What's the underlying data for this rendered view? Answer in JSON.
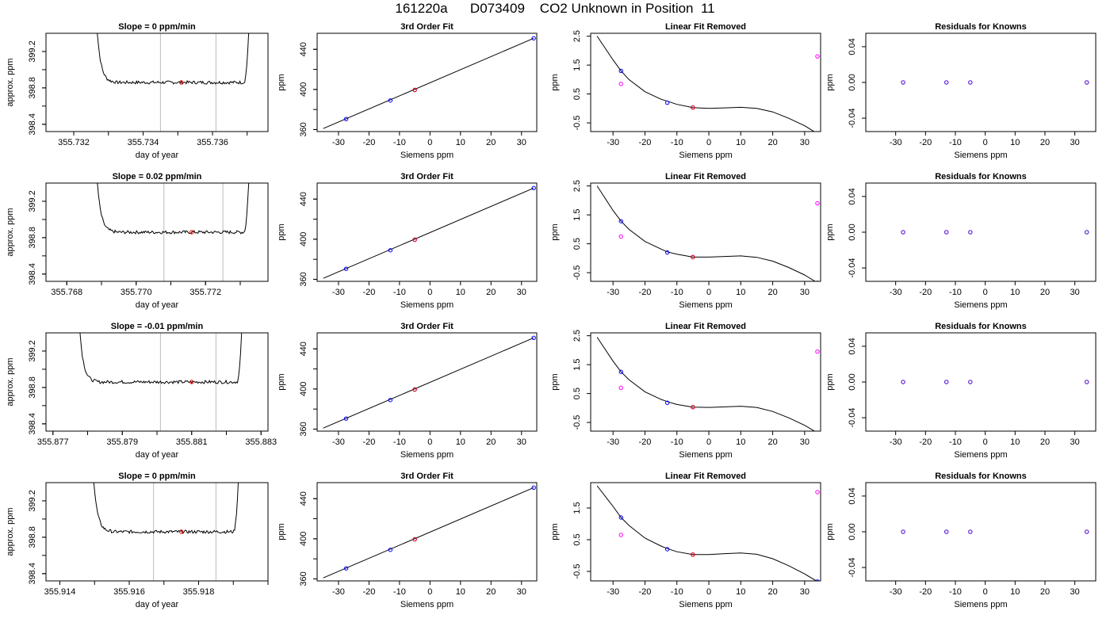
{
  "figure": {
    "title": "161220a      D073409    CO2 Unknown in Position  11"
  },
  "chart_data": [
    {
      "type": "line",
      "title": "Slope =  0  ppm/min",
      "xlabel": "day of year",
      "ylabel": "approx. ppm",
      "xlim": [
        355.7312,
        355.7376
      ],
      "ylim": [
        398.32,
        399.4
      ],
      "xticks": [
        "355.732",
        "355.734",
        "355.736"
      ],
      "xtick_values": [
        355.732,
        355.734,
        355.736
      ],
      "yticks": [
        "398.4",
        "398.8",
        "399.2"
      ],
      "ytick_values": [
        398.4,
        398.8,
        399.2
      ],
      "trace": {
        "x_start": 355.7326,
        "x_end": 355.7371,
        "rise_start": 399.4,
        "level": 398.86,
        "rise_end": 399.4,
        "plateau_start": 355.7328,
        "plateau_end": 355.7369
      },
      "vlines": [
        355.7345,
        355.7361
      ],
      "mean_point": {
        "x": 355.7351,
        "y": 398.86
      }
    },
    {
      "type": "line",
      "title": "3rd Order Fit",
      "xlabel": "Siemens ppm",
      "ylabel": "ppm",
      "xlim": [
        -37,
        35
      ],
      "ylim": [
        358,
        456
      ],
      "xticks": [
        "-30",
        "-20",
        "-10",
        "0",
        "10",
        "20",
        "30"
      ],
      "xtick_values": [
        -30,
        -20,
        -10,
        0,
        10,
        20,
        30
      ],
      "yticks": [
        "360",
        "400",
        "440"
      ],
      "ytick_values": [
        360,
        400,
        440
      ],
      "fit_line": {
        "x": [
          -35,
          34
        ],
        "y": [
          361,
          451
        ]
      },
      "known_points": {
        "x": [
          -27.5,
          -13,
          -5,
          34
        ],
        "y": [
          370.5,
          389,
          399.5,
          451
        ]
      },
      "unknown_point": {
        "x": -5,
        "y": 399.5
      }
    },
    {
      "type": "line",
      "title": "Linear Fit Removed",
      "xlabel": "Siemens ppm",
      "ylabel": "ppm",
      "xlim": [
        -37,
        35
      ],
      "ylim": [
        -0.8,
        2.6
      ],
      "xticks": [
        "-30",
        "-20",
        "-10",
        "0",
        "10",
        "20",
        "30"
      ],
      "xtick_values": [
        -30,
        -20,
        -10,
        0,
        10,
        20,
        30
      ],
      "yticks": [
        "-0.5",
        "0.5",
        "1.5",
        "2.5"
      ],
      "ytick_values": [
        -0.5,
        0.5,
        1.5,
        2.5
      ],
      "curve": {
        "x": [
          -35,
          -30,
          -27.5,
          -25,
          -20,
          -15,
          -13,
          -10,
          -5,
          0,
          5,
          10,
          15,
          20,
          25,
          30,
          34
        ],
        "y": [
          2.5,
          1.68,
          1.3,
          1.0,
          0.58,
          0.32,
          0.25,
          0.14,
          0.03,
          0.0,
          0.02,
          0.04,
          0.0,
          -0.12,
          -0.34,
          -0.6,
          -0.87
        ]
      },
      "known_points": {
        "x": [
          -27.5,
          -13,
          -5,
          34
        ],
        "y": [
          1.3,
          0.2,
          0.03,
          -0.87
        ]
      },
      "unknown_point": {
        "x": -5,
        "y": 0.03
      },
      "magenta_points": {
        "x": [
          -27.5,
          34
        ],
        "y": [
          0.85,
          1.8
        ]
      }
    },
    {
      "type": "scatter",
      "title": "Residuals for Knowns",
      "xlabel": "Siemens ppm",
      "ylabel": "ppm",
      "xlim": [
        -40,
        37
      ],
      "ylim": [
        -0.055,
        0.055
      ],
      "xticks": [
        "-30",
        "-20",
        "-10",
        "0",
        "10",
        "20",
        "30"
      ],
      "xtick_values": [
        -30,
        -20,
        -10,
        0,
        10,
        20,
        30
      ],
      "yticks": [
        "-0.04",
        "0.00",
        "0.04"
      ],
      "ytick_values": [
        -0.04,
        0.0,
        0.04
      ],
      "points": {
        "x": [
          -27.5,
          -13,
          -5,
          34
        ],
        "y": [
          0,
          0,
          0,
          0
        ]
      }
    },
    {
      "type": "line",
      "title": "Slope =  0.02  ppm/min",
      "xlabel": "day of year",
      "ylabel": "approx. ppm",
      "xlim": [
        355.7674,
        355.7738
      ],
      "ylim": [
        398.32,
        399.4
      ],
      "xticks": [
        "355.768",
        "355.770",
        "355.772"
      ],
      "xtick_values": [
        355.768,
        355.77,
        355.772
      ],
      "yticks": [
        "398.4",
        "398.8",
        "399.2"
      ],
      "ytick_values": [
        398.4,
        398.8,
        399.2
      ],
      "trace": {
        "x_start": 355.7688,
        "x_end": 355.7733,
        "rise_start": 399.4,
        "level": 398.86,
        "rise_end": 399.4,
        "plateau_start": 355.769,
        "plateau_end": 355.7731
      },
      "vlines": [
        355.7708,
        355.7725
      ],
      "mean_point": {
        "x": 355.7716,
        "y": 398.86
      }
    },
    {
      "type": "line",
      "title": "3rd Order Fit",
      "xlabel": "Siemens ppm",
      "ylabel": "ppm",
      "xlim": [
        -37,
        35
      ],
      "ylim": [
        358,
        456
      ],
      "xticks": [
        "-30",
        "-20",
        "-10",
        "0",
        "10",
        "20",
        "30"
      ],
      "xtick_values": [
        -30,
        -20,
        -10,
        0,
        10,
        20,
        30
      ],
      "yticks": [
        "360",
        "400",
        "440"
      ],
      "ytick_values": [
        360,
        400,
        440
      ],
      "fit_line": {
        "x": [
          -35,
          34
        ],
        "y": [
          361,
          451
        ]
      },
      "known_points": {
        "x": [
          -27.5,
          -13,
          -5,
          34
        ],
        "y": [
          370.5,
          389,
          399.5,
          451
        ]
      },
      "unknown_point": {
        "x": -5,
        "y": 399.5
      }
    },
    {
      "type": "line",
      "title": "Linear Fit Removed",
      "xlabel": "Siemens ppm",
      "ylabel": "ppm",
      "xlim": [
        -37,
        35
      ],
      "ylim": [
        -0.8,
        2.6
      ],
      "xticks": [
        "-30",
        "-20",
        "-10",
        "0",
        "10",
        "20",
        "30"
      ],
      "xtick_values": [
        -30,
        -20,
        -10,
        0,
        10,
        20,
        30
      ],
      "yticks": [
        "-0.5",
        "0.5",
        "1.5",
        "2.5"
      ],
      "ytick_values": [
        -0.5,
        0.5,
        1.5,
        2.5
      ],
      "curve": {
        "x": [
          -35,
          -30,
          -27.5,
          -25,
          -20,
          -15,
          -13,
          -10,
          -5,
          0,
          5,
          10,
          15,
          20,
          25,
          30,
          34
        ],
        "y": [
          2.5,
          1.65,
          1.28,
          1.0,
          0.58,
          0.32,
          0.22,
          0.14,
          0.04,
          0.04,
          0.06,
          0.08,
          0.03,
          -0.1,
          -0.32,
          -0.58,
          -0.85
        ]
      },
      "known_points": {
        "x": [
          -27.5,
          -13,
          -5,
          34
        ],
        "y": [
          1.28,
          0.2,
          0.04,
          -0.85
        ]
      },
      "unknown_point": {
        "x": -5,
        "y": 0.04
      },
      "magenta_points": {
        "x": [
          -27.5,
          34
        ],
        "y": [
          0.75,
          1.9
        ]
      }
    },
    {
      "type": "scatter",
      "title": "Residuals for Knowns",
      "xlabel": "Siemens ppm",
      "ylabel": "ppm",
      "xlim": [
        -40,
        37
      ],
      "ylim": [
        -0.055,
        0.055
      ],
      "xticks": [
        "-30",
        "-20",
        "-10",
        "0",
        "10",
        "20",
        "30"
      ],
      "xtick_values": [
        -30,
        -20,
        -10,
        0,
        10,
        20,
        30
      ],
      "yticks": [
        "-0.04",
        "0.00",
        "0.04"
      ],
      "ytick_values": [
        -0.04,
        0.0,
        0.04
      ],
      "points": {
        "x": [
          -27.5,
          -13,
          -5,
          34
        ],
        "y": [
          0,
          0,
          0,
          0
        ]
      }
    },
    {
      "type": "line",
      "title": "Slope =  -0.01  ppm/min",
      "xlabel": "day of year",
      "ylabel": "approx. ppm",
      "xlim": [
        355.8768,
        355.8832
      ],
      "ylim": [
        398.32,
        399.4
      ],
      "xticks": [
        "355.877",
        "355.879",
        "355.881",
        "355.883"
      ],
      "xtick_values": [
        355.877,
        355.879,
        355.881,
        355.883
      ],
      "yticks": [
        "398.4",
        "398.8",
        "399.2"
      ],
      "ytick_values": [
        398.4,
        398.8,
        399.2
      ],
      "trace": {
        "x_start": 355.8777,
        "x_end": 355.8825,
        "rise_start": 399.4,
        "level": 398.86,
        "rise_end": 399.4,
        "plateau_start": 355.8779,
        "plateau_end": 355.8823
      },
      "vlines": [
        355.8801,
        355.8817
      ],
      "mean_point": {
        "x": 355.881,
        "y": 398.86
      }
    },
    {
      "type": "line",
      "title": "3rd Order Fit",
      "xlabel": "Siemens ppm",
      "ylabel": "ppm",
      "xlim": [
        -37,
        35
      ],
      "ylim": [
        358,
        456
      ],
      "xticks": [
        "-30",
        "-20",
        "-10",
        "0",
        "10",
        "20",
        "30"
      ],
      "xtick_values": [
        -30,
        -20,
        -10,
        0,
        10,
        20,
        30
      ],
      "yticks": [
        "360",
        "400",
        "440"
      ],
      "ytick_values": [
        360,
        400,
        440
      ],
      "fit_line": {
        "x": [
          -35,
          34
        ],
        "y": [
          361,
          451
        ]
      },
      "known_points": {
        "x": [
          -27.5,
          -13,
          -5,
          34
        ],
        "y": [
          370.5,
          389,
          399.5,
          451
        ]
      },
      "unknown_point": {
        "x": -5,
        "y": 399.5
      }
    },
    {
      "type": "line",
      "title": "Linear Fit Removed",
      "xlabel": "Siemens ppm",
      "ylabel": "ppm",
      "xlim": [
        -37,
        35
      ],
      "ylim": [
        -0.8,
        2.6
      ],
      "xticks": [
        "-30",
        "-20",
        "-10",
        "0",
        "10",
        "20",
        "30"
      ],
      "xtick_values": [
        -30,
        -20,
        -10,
        0,
        10,
        20,
        30
      ],
      "yticks": [
        "-0.5",
        "0.5",
        "1.5",
        "2.5"
      ],
      "ytick_values": [
        -0.5,
        0.5,
        1.5,
        2.5
      ],
      "curve": {
        "x": [
          -35,
          -30,
          -27.5,
          -25,
          -20,
          -15,
          -13,
          -10,
          -5,
          0,
          5,
          10,
          15,
          20,
          25,
          30,
          34
        ],
        "y": [
          2.45,
          1.62,
          1.25,
          0.98,
          0.56,
          0.3,
          0.22,
          0.12,
          0.03,
          0.02,
          0.04,
          0.06,
          0.02,
          -0.12,
          -0.34,
          -0.6,
          -0.86
        ]
      },
      "known_points": {
        "x": [
          -27.5,
          -13,
          -5,
          34
        ],
        "y": [
          1.25,
          0.18,
          0.03,
          -0.86
        ]
      },
      "unknown_point": {
        "x": -5,
        "y": 0.03
      },
      "magenta_points": {
        "x": [
          -27.5,
          34
        ],
        "y": [
          0.7,
          1.95
        ]
      }
    },
    {
      "type": "scatter",
      "title": "Residuals for Knowns",
      "xlabel": "Siemens ppm",
      "ylabel": "ppm",
      "xlim": [
        -40,
        37
      ],
      "ylim": [
        -0.055,
        0.055
      ],
      "xticks": [
        "-30",
        "-20",
        "-10",
        "0",
        "10",
        "20",
        "30"
      ],
      "xtick_values": [
        -30,
        -20,
        -10,
        0,
        10,
        20,
        30
      ],
      "yticks": [
        "-0.04",
        "0.00",
        "0.04"
      ],
      "ytick_values": [
        -0.04,
        0.0,
        0.04
      ],
      "points": {
        "x": [
          -27.5,
          -13,
          -5,
          34
        ],
        "y": [
          0,
          0,
          0,
          0
        ]
      }
    },
    {
      "type": "line",
      "title": "Slope =  0  ppm/min",
      "xlabel": "day of year",
      "ylabel": "approx. ppm",
      "xlim": [
        355.9136,
        355.92
      ],
      "ylim": [
        398.32,
        399.4
      ],
      "xticks": [
        "355.914",
        "355.916",
        "355.918"
      ],
      "xtick_values": [
        355.914,
        355.916,
        355.918
      ],
      "yticks": [
        "398.4",
        "398.8",
        "399.2"
      ],
      "ytick_values": [
        398.4,
        398.8,
        399.2
      ],
      "trace": {
        "x_start": 355.9149,
        "x_end": 355.9192,
        "rise_start": 399.4,
        "level": 398.86,
        "rise_end": 399.4,
        "plateau_start": 355.9151,
        "plateau_end": 355.919
      },
      "vlines": [
        355.9167,
        355.9185
      ],
      "mean_point": {
        "x": 355.9175,
        "y": 398.86
      }
    },
    {
      "type": "line",
      "title": "3rd Order Fit",
      "xlabel": "Siemens ppm",
      "ylabel": "ppm",
      "xlim": [
        -37,
        35
      ],
      "ylim": [
        358,
        456
      ],
      "xticks": [
        "-30",
        "-20",
        "-10",
        "0",
        "10",
        "20",
        "30"
      ],
      "xtick_values": [
        -30,
        -20,
        -10,
        0,
        10,
        20,
        30
      ],
      "yticks": [
        "360",
        "400",
        "440"
      ],
      "ytick_values": [
        360,
        400,
        440
      ],
      "fit_line": {
        "x": [
          -35,
          34
        ],
        "y": [
          361,
          451
        ]
      },
      "known_points": {
        "x": [
          -27.5,
          -13,
          -5,
          34
        ],
        "y": [
          370.5,
          389,
          399.5,
          451
        ]
      },
      "unknown_point": {
        "x": -5,
        "y": 399.5
      }
    },
    {
      "type": "line",
      "title": "Linear Fit Removed",
      "xlabel": "Siemens ppm",
      "ylabel": "ppm",
      "xlim": [
        -37,
        35
      ],
      "ylim": [
        -0.8,
        2.3
      ],
      "xticks": [
        "-30",
        "-20",
        "-10",
        "0",
        "10",
        "20",
        "30"
      ],
      "xtick_values": [
        -30,
        -20,
        -10,
        0,
        10,
        20,
        30
      ],
      "yticks": [
        "-0.5",
        "0.5",
        "1.5"
      ],
      "ytick_values": [
        -0.5,
        0.5,
        1.5
      ],
      "curve": {
        "x": [
          -35,
          -30,
          -27.5,
          -25,
          -20,
          -15,
          -13,
          -10,
          -5,
          0,
          5,
          10,
          15,
          20,
          25,
          30,
          34
        ],
        "y": [
          2.2,
          1.55,
          1.2,
          0.95,
          0.55,
          0.3,
          0.22,
          0.12,
          0.03,
          0.03,
          0.06,
          0.08,
          0.04,
          -0.1,
          -0.32,
          -0.58,
          -0.82
        ]
      },
      "known_points": {
        "x": [
          -27.5,
          -13,
          -5,
          34
        ],
        "y": [
          1.2,
          0.2,
          0.03,
          -0.82
        ]
      },
      "unknown_point": {
        "x": -5,
        "y": 0.03
      },
      "magenta_points": {
        "x": [
          -27.5,
          34
        ],
        "y": [
          0.65,
          2.0
        ]
      }
    },
    {
      "type": "scatter",
      "title": "Residuals for Knowns",
      "xlabel": "Siemens ppm",
      "ylabel": "ppm",
      "xlim": [
        -40,
        37
      ],
      "ylim": [
        -0.055,
        0.055
      ],
      "xticks": [
        "-30",
        "-20",
        "-10",
        "0",
        "10",
        "20",
        "30"
      ],
      "xtick_values": [
        -30,
        -20,
        -10,
        0,
        10,
        20,
        30
      ],
      "yticks": [
        "-0.04",
        "0.00",
        "0.04"
      ],
      "ytick_values": [
        -0.04,
        0.0,
        0.04
      ],
      "points": {
        "x": [
          -27.5,
          -13,
          -5,
          34
        ],
        "y": [
          0,
          0,
          0,
          0
        ]
      }
    }
  ]
}
